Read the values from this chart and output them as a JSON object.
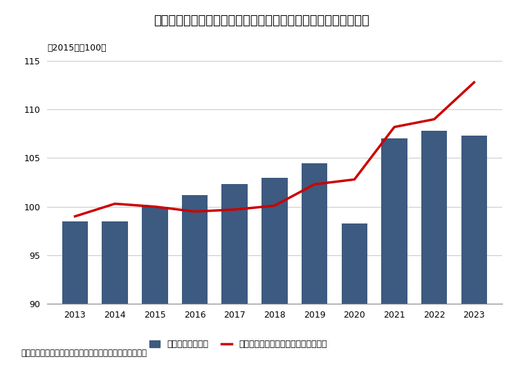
{
  "years": [
    2013,
    2014,
    2015,
    2016,
    2017,
    2018,
    2019,
    2020,
    2021,
    2022,
    2023
  ],
  "bar_values": [
    98.5,
    98.5,
    100.0,
    101.2,
    102.3,
    103.0,
    104.5,
    98.3,
    107.0,
    107.8,
    107.3
  ],
  "line_values": [
    99.0,
    100.3,
    100.0,
    99.5,
    99.7,
    100.1,
    102.3,
    102.8,
    108.2,
    109.0,
    112.8
  ],
  "bar_color": "#3d5a80",
  "line_color": "#cc0000",
  "ylim": [
    90,
    116
  ],
  "yticks": [
    90,
    95,
    100,
    105,
    110,
    115
  ],
  "title": "学習塔売上高指数、受講生一人あたりの学習塔売上高指数の推移",
  "subtitle": "（2015年＝100）",
  "bar_label": "学習塔売上高指数",
  "line_label": "受講生一人あたりの学習塔売上高指数",
  "footnote": "（資料）「特定サービス産業動態統計」　（経済産業省）",
  "background_color": "#ffffff",
  "grid_color": "#cccccc",
  "title_fontsize": 13,
  "subtitle_fontsize": 9,
  "tick_fontsize": 9,
  "legend_fontsize": 9,
  "footnote_fontsize": 8.5
}
